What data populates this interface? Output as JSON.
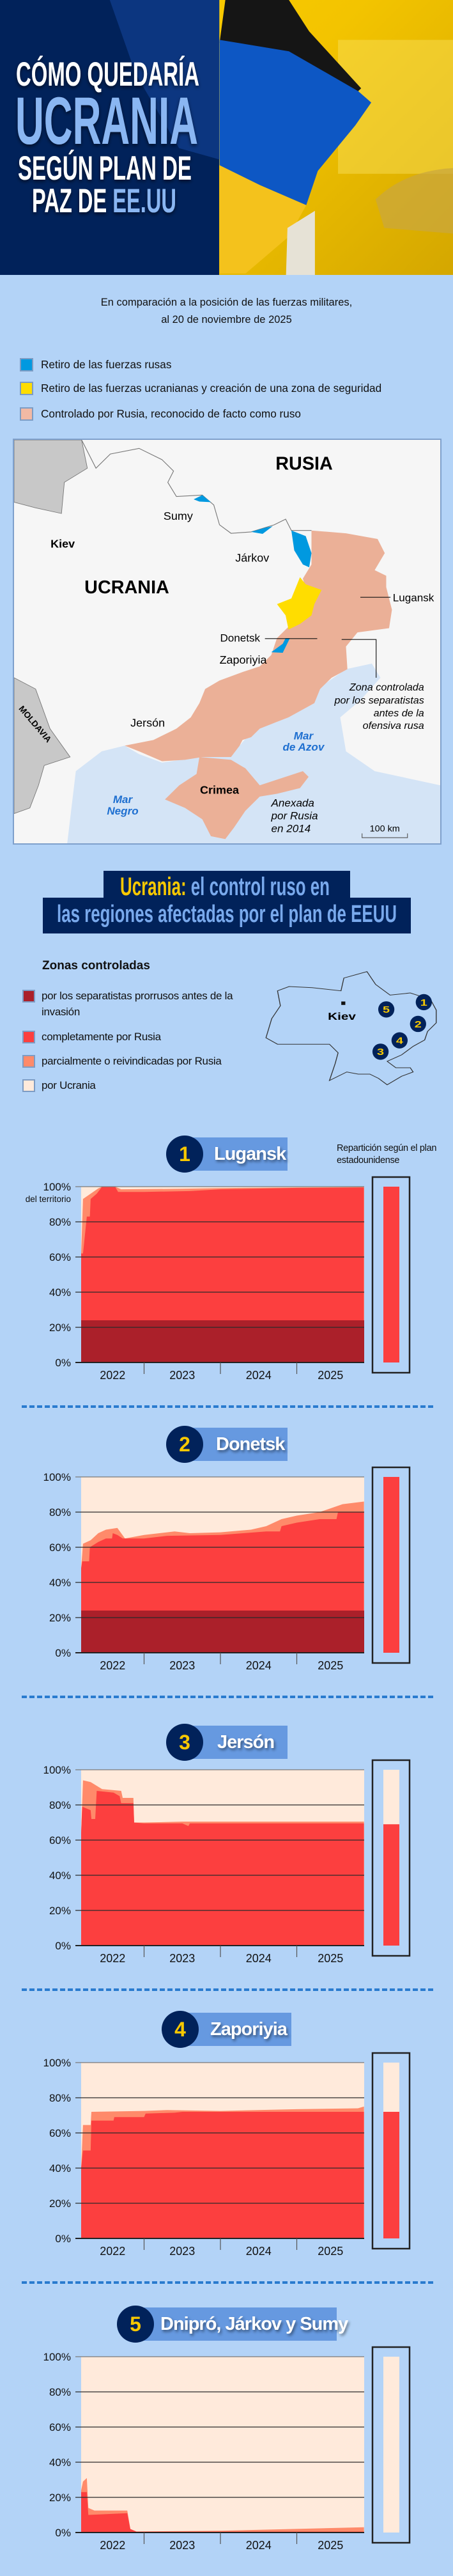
{
  "colors": {
    "background": "#b3d3f7",
    "navy": "#01225a",
    "accent_light_blue": "#8ab6f2",
    "accent_yellow": "#f8c800",
    "badge_blue": "#6699e0",
    "separatist": "#ab202a",
    "russia_full": "#fc3f3f",
    "russia_partial": "#ff8a6a",
    "ukraine": "#ffeadb",
    "map_withdraw_russia": "#0099e0",
    "map_withdraw_ukraine": "#ffdd00",
    "map_russia_controlled": "#efb39b"
  },
  "hero": {
    "title_line1": "CÓMO QUEDARÍA",
    "title_line2": "UCRANIA",
    "title_line3": "SEGÚN PLAN DE",
    "title_line4_a": "PAZ DE ",
    "title_line4_b": "EE.UU"
  },
  "intro": {
    "line1": "En comparación a la posición de las fuerzas militares,",
    "line2": "al 20 de noviembre de 2025"
  },
  "map_legend": [
    {
      "label": "Retiro de las fuerzas rusas",
      "color": "#0099e0"
    },
    {
      "label": "Retiro de las fuerzas ucranianas y creación de una zona de seguridad",
      "color": "#ffdd00"
    },
    {
      "label": "Controlado por Rusia, reconocido de facto como ruso",
      "color": "#f2b9a4"
    }
  ],
  "map": {
    "rusia": "RUSIA",
    "ucrania": "UCRANIA",
    "sumy": "Sumy",
    "kiev": "Kiev",
    "jarkov": "Járkov",
    "lugansk": "Lugansk",
    "donetsk": "Donetsk",
    "zaporiyia": "Zaporiyia",
    "jerson": "Jersón",
    "moldavia": "MOLDAVIA",
    "crimea": "Crimea",
    "zona_note": [
      "Zona controlada",
      "por los separatistas",
      "antes de la",
      "ofensiva rusa"
    ],
    "mar_azov": [
      "Mar",
      "de Azov"
    ],
    "mar_negro": [
      "Mar",
      "Negro"
    ],
    "anexada_note": [
      "Anexada",
      "por Rusia",
      "en 2014"
    ],
    "scale": "100 km"
  },
  "section2": {
    "title_a": "Ucrania:",
    "title_b": " el control ruso en",
    "title_line2": "las regiones afectadas por el plan de EEUU",
    "legend_title": "Zonas controladas",
    "legend": [
      {
        "label": "por los separatistas prorrusos antes de la invasión",
        "color": "#ab202a"
      },
      {
        "label": "completamente por Rusia",
        "color": "#fc3f3f"
      },
      {
        "label": "parcialmente o reivindicadas por Rusia",
        "color": "#ff8a6a"
      },
      {
        "label": "por Ucrania",
        "color": "#ffeadb"
      }
    ],
    "minimap": {
      "kiev": "Kiev",
      "markers": [
        "1",
        "2",
        "3",
        "4",
        "5"
      ]
    }
  },
  "plan_note": "Repartición según el plan estadounidense",
  "chart_data": [
    {
      "type": "area",
      "number": "1",
      "title": "Lugansk",
      "ylabel": "del territorio",
      "yticks": [
        "0%",
        "20%",
        "40%",
        "60%",
        "80%",
        "100%"
      ],
      "ylim": [
        0,
        100
      ],
      "xticks": [
        "2022",
        "2023",
        "2024",
        "2025"
      ],
      "xlim": [
        2022.17,
        2025.88
      ],
      "separatist": 24,
      "full": [
        [
          2022.17,
          62
        ],
        [
          2022.2,
          62
        ],
        [
          2022.21,
          66
        ],
        [
          2022.25,
          83
        ],
        [
          2022.29,
          83
        ],
        [
          2022.3,
          93
        ],
        [
          2022.38,
          96
        ],
        [
          2022.45,
          100
        ],
        [
          2022.62,
          100
        ],
        [
          2022.66,
          97
        ],
        [
          2023.0,
          97
        ],
        [
          2023.6,
          97.5
        ],
        [
          2024.0,
          98.5
        ],
        [
          2025.0,
          99.3
        ],
        [
          2025.88,
          99.5
        ]
      ],
      "partial": [
        [
          2022.17,
          62
        ],
        [
          2022.2,
          93
        ],
        [
          2022.3,
          96
        ],
        [
          2022.4,
          99
        ],
        [
          2022.45,
          100
        ],
        [
          2022.62,
          100
        ],
        [
          2022.7,
          98.5
        ],
        [
          2023.5,
          98.8
        ],
        [
          2024.0,
          99.2
        ],
        [
          2025.88,
          99.8
        ]
      ],
      "plan": {
        "russia": 100,
        "ukraine": 0
      }
    },
    {
      "type": "area",
      "number": "2",
      "title": "Donetsk",
      "yticks": [
        "0%",
        "20%",
        "40%",
        "60%",
        "80%",
        "100%"
      ],
      "ylim": [
        0,
        100
      ],
      "xticks": [
        "2022",
        "2023",
        "2024",
        "2025"
      ],
      "xlim": [
        2022.17,
        2025.88
      ],
      "separatist": 24,
      "full": [
        [
          2022.17,
          48
        ],
        [
          2022.19,
          52
        ],
        [
          2022.28,
          52
        ],
        [
          2022.29,
          60
        ],
        [
          2022.4,
          63
        ],
        [
          2022.5,
          65
        ],
        [
          2022.58,
          65
        ],
        [
          2022.59,
          68
        ],
        [
          2022.65,
          67
        ],
        [
          2022.72,
          65
        ],
        [
          2023.0,
          65
        ],
        [
          2023.3,
          66.5
        ],
        [
          2024.0,
          67
        ],
        [
          2024.3,
          68
        ],
        [
          2024.6,
          69
        ],
        [
          2024.78,
          69
        ],
        [
          2024.8,
          72
        ],
        [
          2025.0,
          74
        ],
        [
          2025.3,
          76
        ],
        [
          2025.52,
          76
        ],
        [
          2025.54,
          80
        ],
        [
          2025.88,
          80
        ]
      ],
      "partial": [
        [
          2022.17,
          48
        ],
        [
          2022.2,
          62
        ],
        [
          2022.3,
          64
        ],
        [
          2022.4,
          68
        ],
        [
          2022.5,
          70
        ],
        [
          2022.65,
          71
        ],
        [
          2022.75,
          65
        ],
        [
          2023.0,
          67
        ],
        [
          2023.4,
          69
        ],
        [
          2023.6,
          68
        ],
        [
          2024.0,
          68.5
        ],
        [
          2024.4,
          70
        ],
        [
          2024.6,
          72
        ],
        [
          2024.8,
          76
        ],
        [
          2025.0,
          78
        ],
        [
          2025.3,
          80
        ],
        [
          2025.6,
          84.5
        ],
        [
          2025.88,
          86
        ]
      ],
      "plan": {
        "russia": 100,
        "ukraine": 0
      }
    },
    {
      "type": "area",
      "number": "3",
      "title": "Jersón",
      "yticks": [
        "0%",
        "20%",
        "40%",
        "60%",
        "80%",
        "100%"
      ],
      "ylim": [
        0,
        100
      ],
      "xticks": [
        "2022",
        "2023",
        "2024",
        "2025"
      ],
      "xlim": [
        2022.17,
        2025.88
      ],
      "separatist": 0,
      "full": [
        [
          2022.17,
          64
        ],
        [
          2022.19,
          79
        ],
        [
          2022.3,
          77
        ],
        [
          2022.31,
          72
        ],
        [
          2022.36,
          72
        ],
        [
          2022.38,
          88
        ],
        [
          2022.6,
          87
        ],
        [
          2022.68,
          85
        ],
        [
          2022.7,
          81
        ],
        [
          2022.86,
          81
        ],
        [
          2022.87,
          70
        ],
        [
          2023.0,
          69.5
        ],
        [
          2023.5,
          69.5
        ],
        [
          2023.58,
          68
        ],
        [
          2023.6,
          69.5
        ],
        [
          2025.88,
          69.5
        ]
      ],
      "partial": [
        [
          2022.17,
          64
        ],
        [
          2022.2,
          94
        ],
        [
          2022.3,
          93
        ],
        [
          2022.45,
          89
        ],
        [
          2022.7,
          88
        ],
        [
          2022.72,
          84
        ],
        [
          2022.86,
          84
        ],
        [
          2022.87,
          70
        ],
        [
          2023.0,
          70
        ],
        [
          2023.5,
          70.5
        ],
        [
          2025.88,
          70.5
        ]
      ],
      "plan": {
        "russia": 69,
        "ukraine": 31
      }
    },
    {
      "type": "area",
      "number": "4",
      "title": "Zaporiyia",
      "yticks": [
        "0%",
        "20%",
        "40%",
        "60%",
        "80%",
        "100%"
      ],
      "ylim": [
        0,
        100
      ],
      "xticks": [
        "2022",
        "2023",
        "2024",
        "2025"
      ],
      "xlim": [
        2022.17,
        2025.88
      ],
      "separatist": 0,
      "full": [
        [
          2022.17,
          40
        ],
        [
          2022.2,
          50
        ],
        [
          2022.3,
          50
        ],
        [
          2022.31,
          67
        ],
        [
          2022.6,
          67
        ],
        [
          2022.61,
          69
        ],
        [
          2023.0,
          69
        ],
        [
          2023.02,
          71
        ],
        [
          2023.4,
          71.5
        ],
        [
          2023.5,
          72
        ],
        [
          2025.88,
          72
        ]
      ],
      "partial": [
        [
          2022.17,
          40
        ],
        [
          2022.2,
          64.5
        ],
        [
          2022.3,
          64.5
        ],
        [
          2022.31,
          72
        ],
        [
          2023.0,
          72.5
        ],
        [
          2023.3,
          73
        ],
        [
          2024.0,
          72.5
        ],
        [
          2025.0,
          73.5
        ],
        [
          2025.8,
          74
        ],
        [
          2025.88,
          75
        ]
      ],
      "plan": {
        "russia": 72,
        "ukraine": 28
      }
    },
    {
      "type": "area",
      "number": "5",
      "title": "Dnipró, Járkov y Sumy",
      "yticks": [
        "0%",
        "20%",
        "40%",
        "60%",
        "80%",
        "100%"
      ],
      "ylim": [
        0,
        100
      ],
      "xticks": [
        "2022",
        "2023",
        "2024",
        "2025"
      ],
      "xlim": [
        2022.17,
        2025.88
      ],
      "separatist": 0,
      "full": [
        [
          2022.17,
          23
        ],
        [
          2022.25,
          23
        ],
        [
          2022.27,
          10
        ],
        [
          2022.78,
          11
        ],
        [
          2022.82,
          2
        ],
        [
          2022.9,
          0.5
        ],
        [
          2025.88,
          0.5
        ]
      ],
      "partial": [
        [
          2022.17,
          24
        ],
        [
          2022.2,
          29
        ],
        [
          2022.25,
          31
        ],
        [
          2022.27,
          14
        ],
        [
          2022.35,
          12.5
        ],
        [
          2022.78,
          12.5
        ],
        [
          2022.82,
          2
        ],
        [
          2022.9,
          0.6
        ],
        [
          2024.0,
          1
        ],
        [
          2025.88,
          3
        ]
      ],
      "plan": {
        "russia": 0,
        "ukraine": 100
      }
    }
  ]
}
